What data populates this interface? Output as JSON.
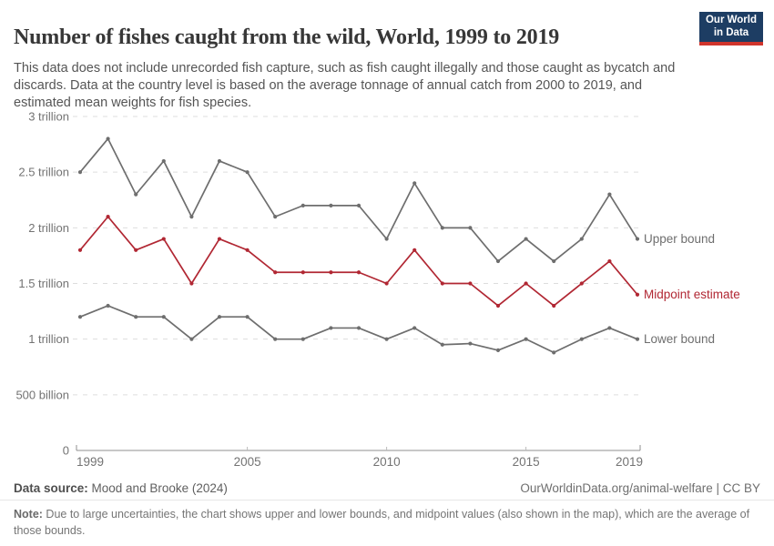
{
  "header": {
    "title": "Number of fishes caught from the wild, World, 1999 to 2019",
    "subtitle": "This data does not include unrecorded fish capture, such as fish caught illegally and those caught as bycatch and discards. Data at the country level is based on the average tonnage of annual catch from 2000 to 2019, and estimated mean weights for fish species.",
    "logo": {
      "line1": "Our World",
      "line2": "in Data",
      "bg_color": "#1d3d63",
      "accent_color": "#d0342c"
    }
  },
  "chart_data": {
    "type": "line",
    "title": "Number of fishes caught from the wild, World, 1999 to 2019",
    "x": [
      1999,
      2000,
      2001,
      2002,
      2003,
      2004,
      2005,
      2006,
      2007,
      2008,
      2009,
      2010,
      2011,
      2012,
      2013,
      2014,
      2015,
      2016,
      2017,
      2018,
      2019
    ],
    "x_ticks": [
      1999,
      2005,
      2010,
      2015,
      2019
    ],
    "unit": "trillions",
    "ylim": [
      0,
      3
    ],
    "grid": "dashed-horizontal",
    "legend_position": "right-of-line-end",
    "y_ticks": [
      {
        "value": 0,
        "label": "0"
      },
      {
        "value": 0.5,
        "label": "500 billion"
      },
      {
        "value": 1,
        "label": "1 trillion"
      },
      {
        "value": 1.5,
        "label": "1.5 trillion"
      },
      {
        "value": 2,
        "label": "2 trillion"
      },
      {
        "value": 2.5,
        "label": "2.5 trillion"
      },
      {
        "value": 3,
        "label": "3 trillion"
      }
    ],
    "series": [
      {
        "name": "Upper bound",
        "color": "#6e6e6e",
        "values": [
          2.5,
          2.8,
          2.3,
          2.6,
          2.1,
          2.6,
          2.5,
          2.1,
          2.2,
          2.2,
          2.2,
          1.9,
          2.4,
          2.0,
          2.0,
          1.7,
          1.9,
          1.7,
          1.9,
          2.3,
          1.9
        ]
      },
      {
        "name": "Midpoint estimate",
        "color": "#b12733",
        "values": [
          1.8,
          2.1,
          1.8,
          1.9,
          1.5,
          1.9,
          1.8,
          1.6,
          1.6,
          1.6,
          1.6,
          1.5,
          1.8,
          1.5,
          1.5,
          1.3,
          1.5,
          1.3,
          1.5,
          1.7,
          1.4
        ]
      },
      {
        "name": "Lower bound",
        "color": "#6e6e6e",
        "values": [
          1.2,
          1.3,
          1.2,
          1.2,
          1.0,
          1.2,
          1.2,
          1.0,
          1.0,
          1.1,
          1.1,
          1.0,
          1.1,
          0.95,
          0.96,
          0.9,
          1.0,
          0.88,
          1.0,
          1.1,
          1.0
        ]
      }
    ],
    "colors": {
      "grid": "#dddddd",
      "axis": "#8f8f8f",
      "tick_label": "#737373"
    }
  },
  "footer": {
    "data_source_label": "Data source:",
    "data_source_value": " Mood and Brooke (2024)",
    "attribution": "OurWorldinData.org/animal-welfare | CC BY",
    "note_label": "Note:",
    "note_text": " Due to large uncertainties, the chart shows upper and lower bounds, and midpoint values (also shown in the map), which are the average of those bounds."
  }
}
